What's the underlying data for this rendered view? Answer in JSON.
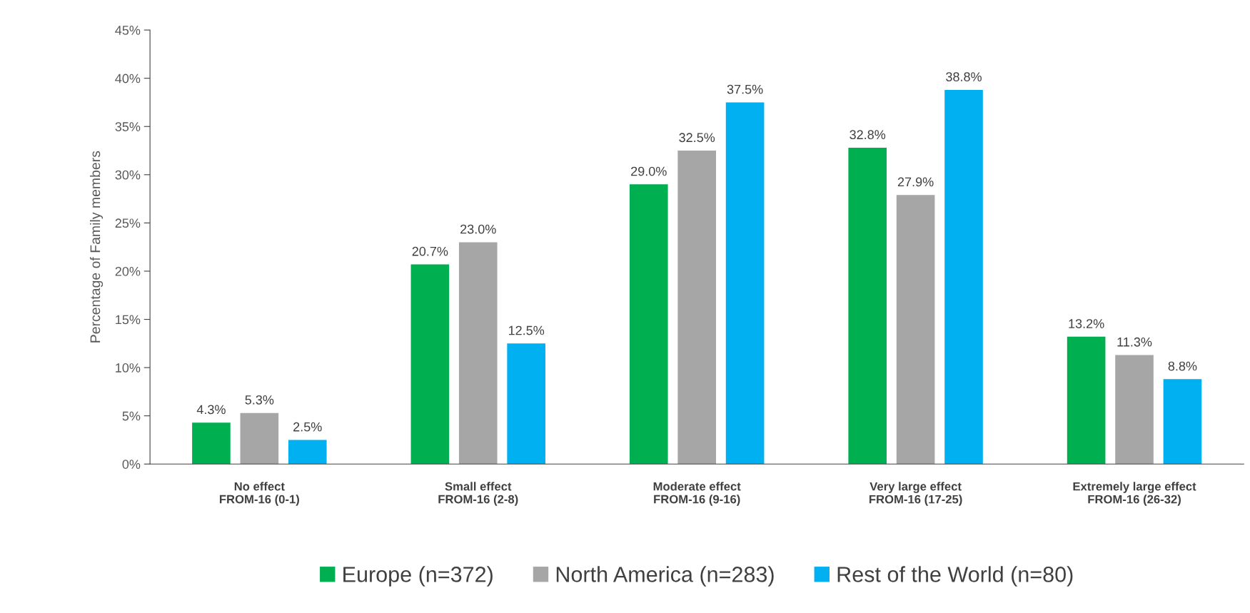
{
  "chart_data": {
    "type": "bar",
    "ylabel": "Percentage of Family members",
    "categories": [
      "No effect\nFROM-16 (0-1)",
      "Small effect\nFROM-16 (2-8)",
      "Moderate effect\nFROM-16 (9-16)",
      "Very large effect\nFROM-16 (17-25)",
      "Extremely large effect\nFROM-16 (26-32)"
    ],
    "series": [
      {
        "name": "Europe (n=372)",
        "color": "#00b050",
        "values": [
          4.3,
          20.7,
          29.0,
          32.8,
          13.2
        ],
        "value_labels": [
          "4.3%",
          "20.7%",
          "29.0%",
          "32.8%",
          "13.2%"
        ]
      },
      {
        "name": "North America (n=283)",
        "color": "#a6a6a6",
        "values": [
          5.3,
          23.0,
          32.5,
          27.9,
          11.3
        ],
        "value_labels": [
          "5.3%",
          "23.0%",
          "32.5%",
          "27.9%",
          "11.3%"
        ]
      },
      {
        "name": "Rest of the World (n=80)",
        "color": "#00b0f0",
        "values": [
          2.5,
          12.5,
          37.5,
          38.8,
          8.8
        ],
        "value_labels": [
          "2.5%",
          "12.5%",
          "37.5%",
          "38.8%",
          "8.8%"
        ]
      }
    ],
    "ylim": [
      0,
      45
    ],
    "yticks": [
      {
        "value": 0,
        "label": "0%"
      },
      {
        "value": 5,
        "label": "5%"
      },
      {
        "value": 10,
        "label": "10%"
      },
      {
        "value": 15,
        "label": "15%"
      },
      {
        "value": 20,
        "label": "20%"
      },
      {
        "value": 25,
        "label": "25%"
      },
      {
        "value": 30,
        "label": "30%"
      },
      {
        "value": 35,
        "label": "35%"
      },
      {
        "value": 40,
        "label": "40%"
      },
      {
        "value": 45,
        "label": "45%"
      }
    ],
    "grid": false,
    "legend": "bottom"
  }
}
